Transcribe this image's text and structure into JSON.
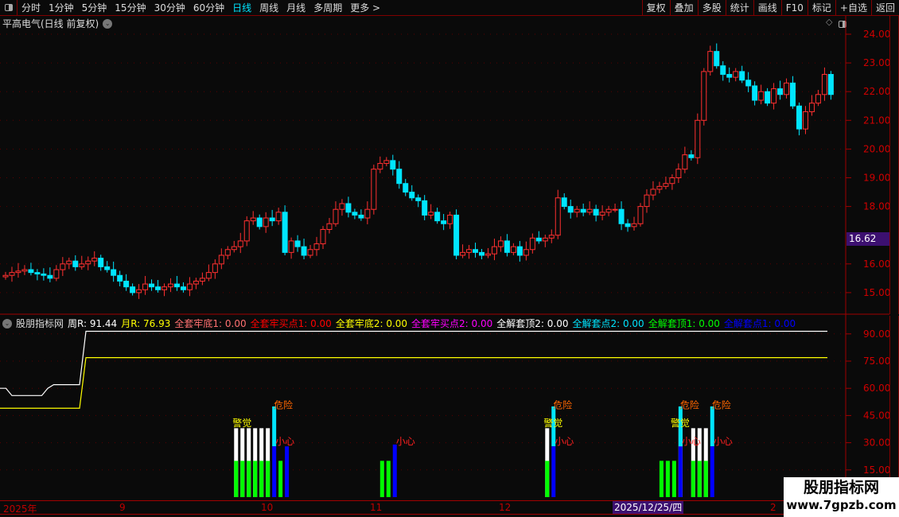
{
  "toolbar": {
    "periods": [
      "分时",
      "1分钟",
      "5分钟",
      "15分钟",
      "30分钟",
      "60分钟",
      "日线",
      "周线",
      "月线",
      "多周期",
      "更多 >"
    ],
    "active": "日线",
    "buttons": [
      "复权",
      "叠加",
      "多股",
      "统计",
      "画线",
      "F10",
      "标记",
      "+自选",
      "返回"
    ]
  },
  "title": "平高电气(日线 前复权)",
  "price_axis": {
    "ticks": [
      "24.00",
      "23.00",
      "22.00",
      "21.00",
      "20.00",
      "19.00",
      "18.00",
      "16.00",
      "15.00"
    ],
    "current": "16.62"
  },
  "indicator": {
    "name": "股朋指标网",
    "items": [
      {
        "label": "周R: 91.44",
        "color": "#ffffff"
      },
      {
        "label": "月R: 76.93",
        "color": "#ffff00"
      },
      {
        "label": "全套牢底1: 0.00",
        "color": "#ff7070"
      },
      {
        "label": "全套牢买点1: 0.00",
        "color": "#ff0000"
      },
      {
        "label": "全套牢底2: 0.00",
        "color": "#ffff00"
      },
      {
        "label": "全套牢买点2: 0.00",
        "color": "#ff00ff"
      },
      {
        "label": "全解套顶2: 0.00",
        "color": "#ffffff"
      },
      {
        "label": "全解套点2: 0.00",
        "color": "#00e5ff"
      },
      {
        "label": "全解套顶1: 0.00",
        "color": "#00ff00"
      },
      {
        "label": "全解套点1: 0.00",
        "color": "#0000ff"
      }
    ],
    "ticks": [
      "90.00",
      "75.00",
      "60.00",
      "45.00",
      "30.00",
      "15.00"
    ],
    "labels": {
      "danger": "危险",
      "alert": "警觉",
      "careful": "小心"
    }
  },
  "time_axis": {
    "labels": [
      "2025年",
      "9",
      "10",
      "11",
      "12",
      "2"
    ],
    "cursor_date": "2025/12/25/四"
  },
  "watermark": {
    "line1": "股朋指标网",
    "line2": "www.7gpzb.com"
  },
  "colors": {
    "up": "#ff3030",
    "down": "#00e5ff",
    "axis": "#c00000",
    "accent": "#3c1070"
  },
  "chart_data": {
    "type": "candlestick",
    "closes": [
      15.6,
      15.7,
      15.75,
      15.8,
      15.7,
      15.65,
      15.6,
      15.5,
      15.8,
      16.0,
      16.1,
      15.9,
      16.0,
      16.1,
      16.2,
      15.9,
      15.8,
      15.6,
      15.4,
      15.2,
      15.0,
      15.1,
      15.3,
      15.2,
      15.1,
      15.2,
      15.3,
      15.2,
      15.1,
      15.3,
      15.4,
      15.5,
      15.7,
      16.0,
      16.3,
      16.5,
      16.6,
      16.8,
      17.5,
      17.6,
      17.3,
      17.6,
      17.5,
      17.8,
      16.4,
      16.8,
      16.6,
      16.3,
      16.5,
      16.7,
      17.2,
      17.4,
      17.9,
      18.1,
      17.8,
      17.7,
      17.6,
      17.9,
      19.3,
      19.5,
      19.6,
      19.3,
      18.8,
      18.5,
      18.3,
      18.2,
      17.7,
      17.8,
      17.5,
      17.4,
      17.7,
      16.3,
      16.4,
      16.5,
      16.4,
      16.3,
      16.35,
      16.6,
      16.8,
      16.4,
      16.6,
      16.3,
      16.5,
      16.9,
      16.8,
      16.9,
      17.0,
      18.3,
      18.0,
      17.8,
      17.9,
      17.8,
      17.9,
      17.7,
      17.8,
      17.9,
      17.9,
      17.4,
      17.3,
      17.4,
      18.0,
      18.4,
      18.6,
      18.7,
      18.8,
      19.0,
      19.3,
      19.8,
      19.7,
      21.0,
      22.7,
      23.4,
      22.9,
      22.6,
      22.5,
      22.7,
      22.4,
      22.2,
      21.7,
      22.0,
      21.6,
      22.1,
      21.9,
      22.3,
      21.5,
      20.7,
      21.3,
      21.6,
      21.9,
      22.6,
      21.9
    ],
    "ylim": [
      14.5,
      24.5
    ],
    "indicator_lines": {
      "week_r": {
        "start": [
          60,
          60,
          56,
          56,
          56,
          56,
          56,
          56,
          60,
          62,
          62,
          62,
          62,
          62
        ],
        "value": 91.44
      },
      "month_r": {
        "start": [
          49,
          49,
          49,
          49,
          49,
          49,
          49,
          49,
          49,
          49,
          49,
          49,
          49
        ],
        "value": 76.93
      }
    },
    "indicator_bars": [
      {
        "i": 37,
        "g": 20,
        "w": 38,
        "alert": true
      },
      {
        "i": 38,
        "g": 20,
        "w": 38,
        "alert": true
      },
      {
        "i": 39,
        "g": 20,
        "w": 38,
        "alert": true
      },
      {
        "i": 40,
        "g": 20,
        "w": 38,
        "alert": true
      },
      {
        "i": 41,
        "g": 20,
        "w": 38,
        "alert": true
      },
      {
        "i": 42,
        "g": 20,
        "w": 38,
        "alert": true
      },
      {
        "i": 43,
        "c": 50,
        "b": 28,
        "danger": true,
        "careful": true
      },
      {
        "i": 44,
        "g": 20,
        "careful": true
      },
      {
        "i": 45,
        "b": 28
      },
      {
        "i": 60,
        "g": 20
      },
      {
        "i": 61,
        "g": 20
      },
      {
        "i": 62,
        "b": 29,
        "careful": true
      },
      {
        "i": 86,
        "g": 20,
        "w": 38,
        "alert": true
      },
      {
        "i": 87,
        "c": 50,
        "b": 28,
        "danger": true,
        "careful": true
      },
      {
        "i": 104,
        "g": 20
      },
      {
        "i": 105,
        "g": 20
      },
      {
        "i": 106,
        "g": 20,
        "alert": true
      },
      {
        "i": 107,
        "c": 50,
        "b": 28,
        "w": 38,
        "danger": true,
        "careful": true
      },
      {
        "i": 109,
        "g": 20,
        "w": 38,
        "alert": true
      },
      {
        "i": 110,
        "g": 20,
        "w": 38,
        "alert": true
      },
      {
        "i": 111,
        "g": 20,
        "w": 38,
        "alert": true
      },
      {
        "i": 112,
        "c": 50,
        "b": 28,
        "danger": true,
        "careful": true
      }
    ]
  }
}
